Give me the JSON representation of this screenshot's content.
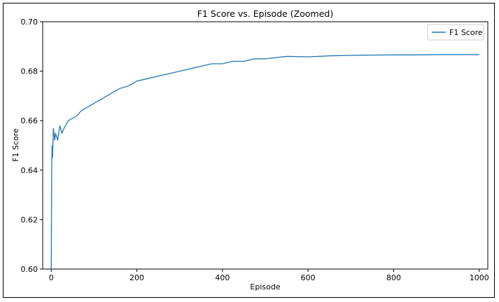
{
  "chart_data": {
    "type": "line",
    "title": "F1 Score vs. Episode (Zoomed)",
    "xlabel": "Episode",
    "ylabel": "F1 Score",
    "xlim": [
      -20,
      1020
    ],
    "ylim": [
      0.6,
      0.7
    ],
    "xticks": [
      0,
      200,
      400,
      600,
      800,
      1000
    ],
    "yticks": [
      0.6,
      0.62,
      0.64,
      0.66,
      0.68,
      0.7
    ],
    "xtick_labels": [
      "0",
      "200",
      "400",
      "600",
      "800",
      "1000"
    ],
    "ytick_labels": [
      "0.60",
      "0.62",
      "0.64",
      "0.66",
      "0.68",
      "0.70"
    ],
    "grid": false,
    "legend_position": "top-right",
    "series": [
      {
        "name": "F1 Score",
        "color": "#1f77b4",
        "x": [
          0,
          1,
          2,
          3,
          5,
          8,
          10,
          15,
          20,
          25,
          30,
          40,
          50,
          60,
          70,
          80,
          90,
          100,
          120,
          140,
          160,
          180,
          200,
          225,
          250,
          275,
          300,
          325,
          350,
          375,
          400,
          425,
          450,
          475,
          500,
          550,
          600,
          650,
          700,
          750,
          800,
          850,
          900,
          950,
          1000
        ],
        "y": [
          0.6,
          0.64,
          0.65,
          0.645,
          0.657,
          0.652,
          0.655,
          0.652,
          0.658,
          0.655,
          0.657,
          0.66,
          0.661,
          0.662,
          0.664,
          0.665,
          0.666,
          0.667,
          0.669,
          0.671,
          0.673,
          0.674,
          0.676,
          0.677,
          0.678,
          0.679,
          0.68,
          0.681,
          0.682,
          0.683,
          0.683,
          0.684,
          0.684,
          0.685,
          0.685,
          0.686,
          0.6858,
          0.6862,
          0.6864,
          0.6865,
          0.6866,
          0.6866,
          0.6867,
          0.6867,
          0.6867
        ]
      }
    ]
  }
}
